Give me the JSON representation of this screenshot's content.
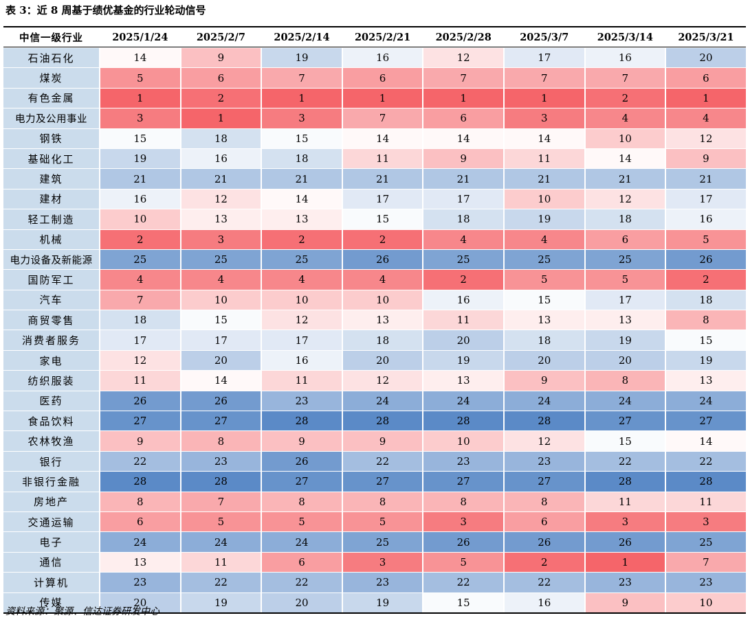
{
  "title": "表 3：近 8 周基于绩优基金的行业轮动信号",
  "source": "资料来源：聚源、信达证券研发中心",
  "colors": {
    "low_rank_hot": "#f5656a",
    "mid": "#ffffff",
    "high_rank_cold": "#5b8ac7",
    "label_bg": "#cbdcec"
  },
  "table": {
    "row_header_label": "中信一级行业",
    "dates": [
      "2025/1/24",
      "2025/2/7",
      "2025/2/14",
      "2025/2/21",
      "2025/2/28",
      "2025/3/7",
      "2025/3/14",
      "2025/3/21"
    ],
    "rows": [
      {
        "name": "石油石化",
        "values": [
          "14",
          "9",
          "19",
          "16",
          "12",
          "17",
          "16",
          "20"
        ]
      },
      {
        "name": "煤炭",
        "values": [
          "5",
          "6",
          "7",
          "6",
          "7",
          "7",
          "7",
          "6"
        ]
      },
      {
        "name": "有色金属",
        "values": [
          "1",
          "2",
          "1",
          "1",
          "1",
          "1",
          "2",
          "1"
        ]
      },
      {
        "name": "电力及公用事业",
        "values": [
          "3",
          "1",
          "3",
          "7",
          "6",
          "3",
          "4",
          "4"
        ]
      },
      {
        "name": "钢铁",
        "values": [
          "15",
          "18",
          "15",
          "14",
          "14",
          "14",
          "10",
          "12"
        ]
      },
      {
        "name": "基础化工",
        "values": [
          "19",
          "16",
          "18",
          "11",
          "9",
          "11",
          "14",
          "9"
        ]
      },
      {
        "name": "建筑",
        "values": [
          "21",
          "21",
          "21",
          "21",
          "21",
          "21",
          "21",
          "21"
        ]
      },
      {
        "name": "建材",
        "values": [
          "16",
          "12",
          "14",
          "17",
          "17",
          "10",
          "12",
          "17"
        ]
      },
      {
        "name": "轻工制造",
        "values": [
          "10",
          "13",
          "13",
          "15",
          "18",
          "19",
          "18",
          "16"
        ]
      },
      {
        "name": "机械",
        "values": [
          "2",
          "3",
          "2",
          "2",
          "4",
          "4",
          "6",
          "5"
        ]
      },
      {
        "name": "电力设备及新能源",
        "values": [
          "25",
          "25",
          "25",
          "26",
          "25",
          "25",
          "25",
          "26"
        ]
      },
      {
        "name": "国防军工",
        "values": [
          "4",
          "4",
          "4",
          "4",
          "2",
          "5",
          "5",
          "2"
        ]
      },
      {
        "name": "汽车",
        "values": [
          "7",
          "10",
          "10",
          "10",
          "16",
          "15",
          "17",
          "18"
        ]
      },
      {
        "name": "商贸零售",
        "values": [
          "18",
          "15",
          "12",
          "13",
          "11",
          "13",
          "13",
          "8"
        ]
      },
      {
        "name": "消费者服务",
        "values": [
          "17",
          "17",
          "17",
          "18",
          "20",
          "18",
          "19",
          "15"
        ]
      },
      {
        "name": "家电",
        "values": [
          "12",
          "20",
          "16",
          "20",
          "19",
          "20",
          "20",
          "19"
        ]
      },
      {
        "name": "纺织服装",
        "values": [
          "11",
          "14",
          "11",
          "12",
          "13",
          "9",
          "8",
          "13"
        ]
      },
      {
        "name": "医药",
        "values": [
          "26",
          "26",
          "23",
          "24",
          "24",
          "24",
          "24",
          "24"
        ]
      },
      {
        "name": "食品饮料",
        "values": [
          "27",
          "27",
          "28",
          "28",
          "28",
          "28",
          "27",
          "27"
        ]
      },
      {
        "name": "农林牧渔",
        "values": [
          "9",
          "8",
          "9",
          "9",
          "10",
          "12",
          "15",
          "14"
        ]
      },
      {
        "name": "银行",
        "values": [
          "22",
          "23",
          "26",
          "22",
          "23",
          "23",
          "22",
          "22"
        ]
      },
      {
        "name": "非银行金融",
        "values": [
          "28",
          "28",
          "27",
          "27",
          "27",
          "27",
          "28",
          "28"
        ]
      },
      {
        "name": "房地产",
        "values": [
          "8",
          "7",
          "8",
          "8",
          "8",
          "8",
          "11",
          "11"
        ]
      },
      {
        "name": "交通运输",
        "values": [
          "6",
          "5",
          "5",
          "5",
          "3",
          "6",
          "3",
          "3"
        ]
      },
      {
        "name": "电子",
        "values": [
          "24",
          "24",
          "24",
          "25",
          "26",
          "26",
          "26",
          "25"
        ]
      },
      {
        "name": "通信",
        "values": [
          "13",
          "11",
          "6",
          "3",
          "5",
          "2",
          "1",
          "7"
        ]
      },
      {
        "name": "计算机",
        "values": [
          "23",
          "22",
          "22",
          "23",
          "22",
          "22",
          "23",
          "23"
        ]
      },
      {
        "name": "传媒",
        "values": [
          "20",
          "19",
          "20",
          "19",
          "15",
          "16",
          "9",
          "10"
        ]
      }
    ]
  }
}
